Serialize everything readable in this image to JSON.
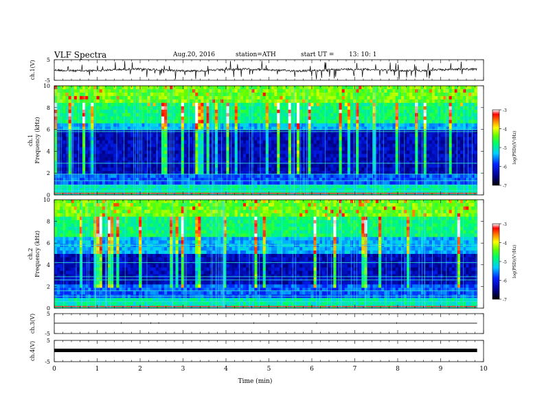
{
  "header": {
    "title": "VLF  Spectra",
    "date": "Aug.20, 2016",
    "station": "station=ATH",
    "start_label": "start  UT  =",
    "start_time": "13: 10: 1"
  },
  "chart_data": [
    {
      "type": "line",
      "panel": "ch1-waveform",
      "ylabel": "ch.1(V)",
      "ylim": [
        -5,
        5
      ],
      "yticks": [
        "5",
        "-5"
      ],
      "baseline": 0,
      "x_extent": [
        0,
        9.85
      ],
      "color": "#000000"
    },
    {
      "type": "heatmap",
      "panel": "ch1-spectrogram",
      "ylabel": "ch.1\nFrequency (kHz)",
      "ylim": [
        0,
        10
      ],
      "yticks": [
        "0",
        "2",
        "4",
        "6",
        "8",
        "10"
      ],
      "x_extent": [
        0,
        9.85
      ],
      "low_band_khz": [
        2,
        5.8
      ],
      "colorbar": {
        "label": "log(PSD)(V²/Hz)",
        "range": [
          -7,
          -3
        ],
        "ticks": [
          "-3",
          "-4",
          "-5",
          "-6",
          "-7"
        ]
      }
    },
    {
      "type": "heatmap",
      "panel": "ch2-spectrogram",
      "ylabel": "ch.2\nFrequency (kHz)",
      "ylim": [
        0,
        10
      ],
      "yticks": [
        "0",
        "2",
        "4",
        "6",
        "8",
        "10"
      ],
      "x_extent": [
        0,
        9.85
      ],
      "low_band_khz": [
        2.2,
        5
      ],
      "colorbar": {
        "label": "log(PSD)(V²/Hz)",
        "range": [
          -7,
          -3
        ],
        "ticks": [
          "-3",
          "-4",
          "-5",
          "-6",
          "-7"
        ]
      }
    },
    {
      "type": "line",
      "panel": "ch3-waveform",
      "ylabel": "ch.3(V)",
      "ylim": [
        -5,
        5
      ],
      "yticks": [
        "5",
        "-5"
      ],
      "baseline": 0.2,
      "x_extent": [
        0,
        9.85
      ],
      "color": "#000000"
    },
    {
      "type": "line",
      "panel": "ch4-waveform",
      "ylabel": "ch.4(V)",
      "ylim": [
        -5,
        5
      ],
      "yticks": [
        "5",
        "-5"
      ],
      "baseline": 0.3,
      "x_extent": [
        0,
        9.85
      ],
      "color": "#000000"
    }
  ],
  "x_axis": {
    "label": "Time  (min)",
    "range": [
      0,
      10
    ],
    "ticks": [
      "0",
      "1",
      "2",
      "3",
      "4",
      "5",
      "6",
      "7",
      "8",
      "9",
      "10"
    ]
  }
}
